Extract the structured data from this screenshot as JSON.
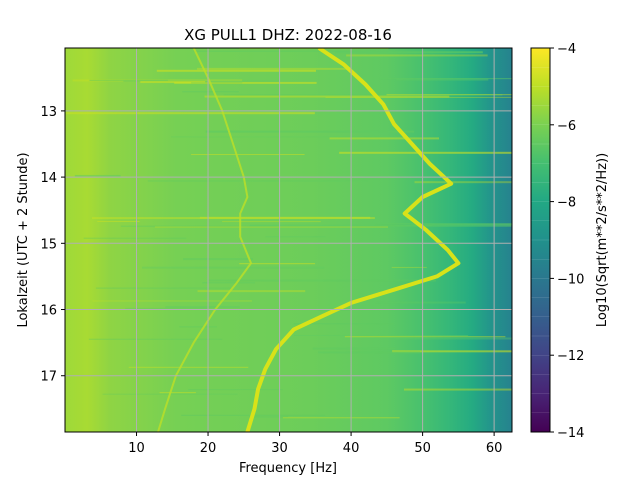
{
  "chart_data": {
    "type": "heatmap",
    "title": "XG PULL1  DHZ: 2022-08-16",
    "xlabel": "Frequency [Hz]",
    "ylabel": "Lokalzeit (UTC + 2 Stunde)",
    "colorbar_label": "Log10(Sqrt(m**2/s**2/Hz))",
    "xlim": [
      0,
      62.5
    ],
    "ylim": [
      12.05,
      17.85
    ],
    "y_inverted": true,
    "x_ticks": [
      10,
      20,
      30,
      40,
      50,
      60
    ],
    "y_ticks": [
      13,
      14,
      15,
      16,
      17
    ],
    "colorbar_range": [
      -14,
      -4
    ],
    "colorbar_ticks": [
      -14,
      -12,
      -10,
      -8,
      -6,
      -4
    ],
    "colormap": "viridis",
    "grid": true,
    "bright_track": {
      "name": "",
      "y": [
        12.05,
        12.3,
        12.6,
        12.9,
        13.2,
        13.5,
        13.8,
        14.1,
        14.3,
        14.55,
        14.8,
        15.1,
        15.3,
        15.5,
        15.7,
        15.9,
        16.1,
        16.3,
        16.6,
        16.9,
        17.2,
        17.5,
        17.85
      ],
      "x": [
        35.5,
        39,
        42,
        44.5,
        46,
        48.5,
        51,
        54,
        50,
        47.5,
        50.5,
        53.5,
        55,
        52,
        46,
        40,
        36,
        32,
        29.5,
        28,
        27,
        26.5,
        25.5
      ]
    },
    "faint_track": {
      "name": "",
      "y": [
        12.05,
        12.5,
        13.0,
        13.5,
        14.0,
        14.3,
        14.55,
        14.9,
        15.3,
        15.6,
        16.0,
        16.5,
        17.0,
        17.5,
        17.85
      ],
      "x": [
        18,
        20,
        22,
        23.5,
        25,
        25.5,
        24.5,
        24.5,
        26,
        24,
        21,
        18,
        15.5,
        14,
        13
      ]
    },
    "colors": {
      "background_low_freq": "#a2da37",
      "background_mid": "#6ccd5a",
      "background_high_freq": "#2a9f88",
      "track": "#d8e219",
      "grid": "#b0b0b0"
    }
  }
}
